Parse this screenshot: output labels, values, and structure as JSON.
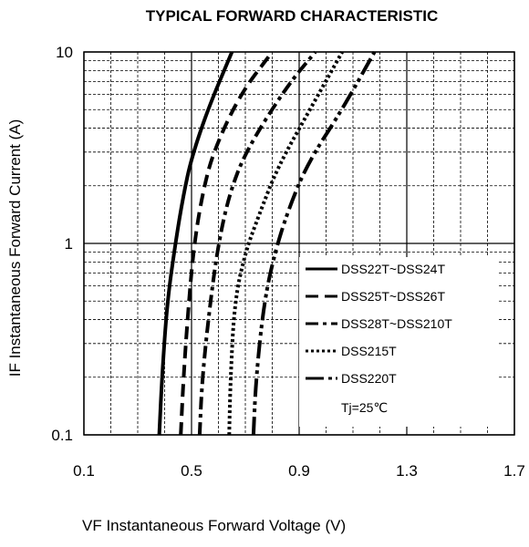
{
  "chart_data": {
    "type": "line",
    "title": "TYPICAL FORWARD CHARACTERISTIC",
    "xlabel": "VF  Instantaneous Forward Voltage (V)",
    "ylabel": "IF Instantaneous Forward Current (A)",
    "xlim": [
      0.1,
      1.7
    ],
    "ylim": [
      0.1,
      10
    ],
    "xscale": "linear",
    "yscale": "log",
    "x_ticks": [
      "0.1",
      "0.5",
      "0.9",
      "1.3",
      "1.7"
    ],
    "y_ticks": [
      "0.1",
      "1",
      "10"
    ],
    "grid": true,
    "legend_position": "lower-right",
    "annotation": "Tj=25℃",
    "series": [
      {
        "name": "DSS22T~DSS24T",
        "style": "solid",
        "points": [
          [
            0.38,
            0.1
          ],
          [
            0.39,
            0.2
          ],
          [
            0.41,
            0.5
          ],
          [
            0.44,
            1.0
          ],
          [
            0.47,
            1.8
          ],
          [
            0.5,
            2.8
          ],
          [
            0.56,
            5.0
          ],
          [
            0.65,
            10
          ]
        ]
      },
      {
        "name": "DSS25T~DSS26T",
        "style": "dash",
        "points": [
          [
            0.46,
            0.1
          ],
          [
            0.47,
            0.2
          ],
          [
            0.49,
            0.5
          ],
          [
            0.51,
            1.0
          ],
          [
            0.54,
            1.8
          ],
          [
            0.58,
            3.0
          ],
          [
            0.68,
            6.0
          ],
          [
            0.8,
            10
          ]
        ]
      },
      {
        "name": "DSS28T~DSS210T",
        "style": "dashdot",
        "points": [
          [
            0.53,
            0.1
          ],
          [
            0.54,
            0.2
          ],
          [
            0.57,
            0.5
          ],
          [
            0.6,
            1.0
          ],
          [
            0.64,
            1.8
          ],
          [
            0.7,
            3.0
          ],
          [
            0.85,
            6.5
          ],
          [
            0.96,
            10
          ]
        ]
      },
      {
        "name": "DSS215T",
        "style": "dot",
        "points": [
          [
            0.64,
            0.1
          ],
          [
            0.645,
            0.2
          ],
          [
            0.66,
            0.5
          ],
          [
            0.7,
            0.9
          ],
          [
            0.75,
            1.4
          ],
          [
            0.82,
            2.5
          ],
          [
            0.94,
            5.0
          ],
          [
            1.06,
            10
          ]
        ]
      },
      {
        "name": "DSS220T",
        "style": "dashdotdot",
        "points": [
          [
            0.73,
            0.1
          ],
          [
            0.74,
            0.2
          ],
          [
            0.77,
            0.5
          ],
          [
            0.81,
            0.9
          ],
          [
            0.86,
            1.5
          ],
          [
            0.93,
            2.6
          ],
          [
            1.06,
            5.0
          ],
          [
            1.18,
            10
          ]
        ]
      }
    ]
  }
}
